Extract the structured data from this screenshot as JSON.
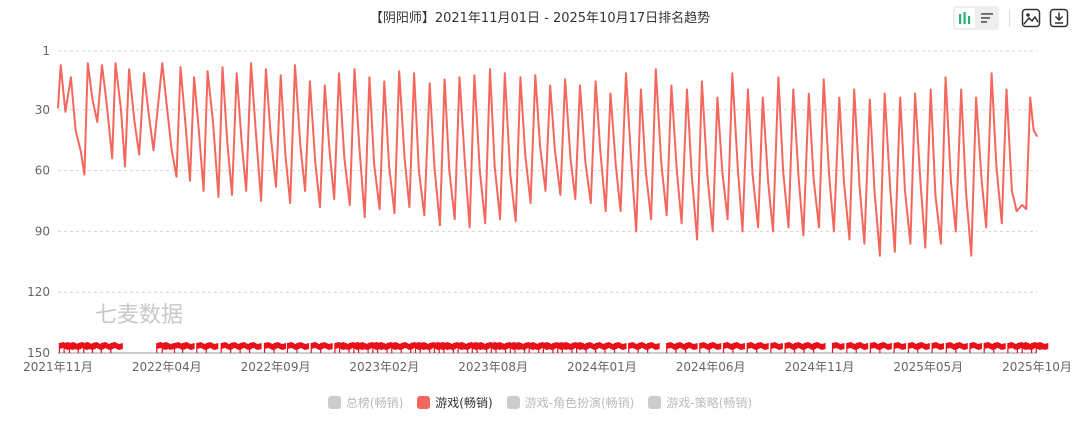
{
  "title": "【阴阳师】2021年11月01日 - 2025年10月17日排名趋势",
  "watermark": "七麦数据",
  "colors": {
    "line": "#f4675d",
    "flag": "#e8101a",
    "grid": "#d4d4d4",
    "inactive": "#cccccc"
  },
  "toolbar": {
    "icons": [
      "bar-chart-icon",
      "list-icon",
      "image-save-icon",
      "download-icon"
    ]
  },
  "legend": [
    {
      "label": "总榜(畅销)",
      "active": false
    },
    {
      "label": "游戏(畅销)",
      "active": true
    },
    {
      "label": "游戏-角色扮演(畅销)",
      "active": false
    },
    {
      "label": "游戏-策略(畅销)",
      "active": false
    }
  ],
  "chart_data": {
    "type": "line",
    "title": "【阴阳师】2021年11月01日 - 2025年10月17日排名趋势",
    "x_range": [
      "2021-11-01",
      "2025-10-17"
    ],
    "x_tick_labels": [
      "2021年11月",
      "2022年04月",
      "2022年09月",
      "2023年02月",
      "2023年08月",
      "2024年01月",
      "2024年06月",
      "2024年11月",
      "2025年05月",
      "2025年10月"
    ],
    "y_tick_labels": [
      "1",
      "30",
      "60",
      "90",
      "120",
      "150"
    ],
    "y_ticks": [
      1,
      30,
      60,
      90,
      120,
      150
    ],
    "ylim": [
      1,
      150
    ],
    "y_inverted": true,
    "grid": "horizontal dashed",
    "legend_position": "bottom",
    "series": [
      {
        "name": "游戏(畅销)",
        "active": true,
        "points": [
          [
            "2021-11-01",
            29
          ],
          [
            "2021-11-05",
            8
          ],
          [
            "2021-11-12",
            31
          ],
          [
            "2021-11-20",
            14
          ],
          [
            "2021-11-27",
            40
          ],
          [
            "2021-12-05",
            51
          ],
          [
            "2021-12-10",
            62
          ],
          [
            "2021-12-15",
            7
          ],
          [
            "2021-12-22",
            25
          ],
          [
            "2021-12-29",
            36
          ],
          [
            "2022-01-05",
            8
          ],
          [
            "2022-01-12",
            27
          ],
          [
            "2022-01-20",
            54
          ],
          [
            "2022-01-25",
            7
          ],
          [
            "2022-02-02",
            30
          ],
          [
            "2022-02-08",
            58
          ],
          [
            "2022-02-14",
            10
          ],
          [
            "2022-02-22",
            36
          ],
          [
            "2022-03-01",
            52
          ],
          [
            "2022-03-08",
            12
          ],
          [
            "2022-03-15",
            32
          ],
          [
            "2022-03-22",
            50
          ],
          [
            "2022-03-29",
            27
          ],
          [
            "2022-04-04",
            7
          ],
          [
            "2022-04-11",
            29
          ],
          [
            "2022-04-18",
            50
          ],
          [
            "2022-04-25",
            63
          ],
          [
            "2022-05-01",
            9
          ],
          [
            "2022-05-08",
            36
          ],
          [
            "2022-05-15",
            65
          ],
          [
            "2022-05-21",
            14
          ],
          [
            "2022-05-28",
            40
          ],
          [
            "2022-06-04",
            70
          ],
          [
            "2022-06-10",
            11
          ],
          [
            "2022-06-18",
            36
          ],
          [
            "2022-06-26",
            73
          ],
          [
            "2022-07-02",
            9
          ],
          [
            "2022-07-09",
            46
          ],
          [
            "2022-07-16",
            72
          ],
          [
            "2022-07-23",
            12
          ],
          [
            "2022-07-30",
            45
          ],
          [
            "2022-08-06",
            70
          ],
          [
            "2022-08-13",
            7
          ],
          [
            "2022-08-20",
            40
          ],
          [
            "2022-08-28",
            75
          ],
          [
            "2022-09-04",
            10
          ],
          [
            "2022-09-11",
            42
          ],
          [
            "2022-09-19",
            68
          ],
          [
            "2022-09-26",
            13
          ],
          [
            "2022-10-03",
            53
          ],
          [
            "2022-10-10",
            76
          ],
          [
            "2022-10-17",
            8
          ],
          [
            "2022-10-25",
            48
          ],
          [
            "2022-11-01",
            70
          ],
          [
            "2022-11-08",
            16
          ],
          [
            "2022-11-16",
            56
          ],
          [
            "2022-11-23",
            78
          ],
          [
            "2022-11-30",
            18
          ],
          [
            "2022-12-07",
            50
          ],
          [
            "2022-12-14",
            74
          ],
          [
            "2022-12-21",
            12
          ],
          [
            "2022-12-29",
            54
          ],
          [
            "2023-01-06",
            77
          ],
          [
            "2023-01-13",
            10
          ],
          [
            "2023-01-20",
            48
          ],
          [
            "2023-01-28",
            83
          ],
          [
            "2023-02-04",
            14
          ],
          [
            "2023-02-11",
            57
          ],
          [
            "2023-02-19",
            79
          ],
          [
            "2023-02-26",
            16
          ],
          [
            "2023-03-05",
            58
          ],
          [
            "2023-03-13",
            81
          ],
          [
            "2023-03-20",
            11
          ],
          [
            "2023-03-28",
            54
          ],
          [
            "2023-04-04",
            78
          ],
          [
            "2023-04-11",
            12
          ],
          [
            "2023-04-18",
            60
          ],
          [
            "2023-04-26",
            82
          ],
          [
            "2023-05-04",
            17
          ],
          [
            "2023-05-11",
            58
          ],
          [
            "2023-05-19",
            87
          ],
          [
            "2023-05-26",
            15
          ],
          [
            "2023-06-02",
            60
          ],
          [
            "2023-06-10",
            84
          ],
          [
            "2023-06-17",
            14
          ],
          [
            "2023-06-25",
            56
          ],
          [
            "2023-07-02",
            88
          ],
          [
            "2023-07-09",
            13
          ],
          [
            "2023-07-17",
            60
          ],
          [
            "2023-07-25",
            86
          ],
          [
            "2023-08-01",
            10
          ],
          [
            "2023-08-08",
            58
          ],
          [
            "2023-08-16",
            84
          ],
          [
            "2023-08-23",
            12
          ],
          [
            "2023-08-31",
            62
          ],
          [
            "2023-09-08",
            85
          ],
          [
            "2023-09-15",
            14
          ],
          [
            "2023-09-22",
            52
          ],
          [
            "2023-09-30",
            76
          ],
          [
            "2023-10-07",
            13
          ],
          [
            "2023-10-14",
            48
          ],
          [
            "2023-10-22",
            70
          ],
          [
            "2023-10-29",
            18
          ],
          [
            "2023-11-05",
            50
          ],
          [
            "2023-11-13",
            72
          ],
          [
            "2023-11-20",
            15
          ],
          [
            "2023-11-28",
            54
          ],
          [
            "2023-12-05",
            74
          ],
          [
            "2023-12-12",
            18
          ],
          [
            "2023-12-20",
            56
          ],
          [
            "2023-12-28",
            76
          ],
          [
            "2024-01-04",
            16
          ],
          [
            "2024-01-11",
            50
          ],
          [
            "2024-01-19",
            80
          ],
          [
            "2024-01-26",
            22
          ],
          [
            "2024-02-03",
            58
          ],
          [
            "2024-02-10",
            80
          ],
          [
            "2024-02-18",
            12
          ],
          [
            "2024-02-25",
            52
          ],
          [
            "2024-03-04",
            90
          ],
          [
            "2024-03-11",
            20
          ],
          [
            "2024-03-18",
            60
          ],
          [
            "2024-03-26",
            84
          ],
          [
            "2024-04-02",
            10
          ],
          [
            "2024-04-10",
            56
          ],
          [
            "2024-04-18",
            82
          ],
          [
            "2024-04-25",
            18
          ],
          [
            "2024-05-03",
            60
          ],
          [
            "2024-05-10",
            86
          ],
          [
            "2024-05-18",
            20
          ],
          [
            "2024-05-25",
            62
          ],
          [
            "2024-06-02",
            94
          ],
          [
            "2024-06-09",
            16
          ],
          [
            "2024-06-17",
            62
          ],
          [
            "2024-06-25",
            90
          ],
          [
            "2024-07-02",
            24
          ],
          [
            "2024-07-09",
            60
          ],
          [
            "2024-07-17",
            84
          ],
          [
            "2024-07-24",
            12
          ],
          [
            "2024-08-01",
            58
          ],
          [
            "2024-08-08",
            90
          ],
          [
            "2024-08-16",
            20
          ],
          [
            "2024-08-23",
            62
          ],
          [
            "2024-08-31",
            88
          ],
          [
            "2024-09-07",
            24
          ],
          [
            "2024-09-15",
            66
          ],
          [
            "2024-09-22",
            90
          ],
          [
            "2024-09-30",
            14
          ],
          [
            "2024-10-07",
            60
          ],
          [
            "2024-10-15",
            88
          ],
          [
            "2024-10-22",
            20
          ],
          [
            "2024-10-30",
            64
          ],
          [
            "2024-11-06",
            92
          ],
          [
            "2024-11-14",
            22
          ],
          [
            "2024-11-21",
            64
          ],
          [
            "2024-11-29",
            88
          ],
          [
            "2024-12-06",
            15
          ],
          [
            "2024-12-14",
            62
          ],
          [
            "2024-12-21",
            90
          ],
          [
            "2024-12-29",
            24
          ],
          [
            "2025-01-05",
            66
          ],
          [
            "2025-01-13",
            94
          ],
          [
            "2025-01-20",
            20
          ],
          [
            "2025-01-28",
            68
          ],
          [
            "2025-02-04",
            96
          ],
          [
            "2025-02-12",
            25
          ],
          [
            "2025-02-19",
            70
          ],
          [
            "2025-02-27",
            102
          ],
          [
            "2025-03-06",
            22
          ],
          [
            "2025-03-14",
            68
          ],
          [
            "2025-03-21",
            100
          ],
          [
            "2025-03-29",
            24
          ],
          [
            "2025-04-05",
            70
          ],
          [
            "2025-04-13",
            96
          ],
          [
            "2025-04-20",
            22
          ],
          [
            "2025-04-28",
            66
          ],
          [
            "2025-05-05",
            98
          ],
          [
            "2025-05-13",
            20
          ],
          [
            "2025-05-20",
            72
          ],
          [
            "2025-05-28",
            96
          ],
          [
            "2025-06-04",
            14
          ],
          [
            "2025-06-12",
            66
          ],
          [
            "2025-06-19",
            90
          ],
          [
            "2025-06-27",
            20
          ],
          [
            "2025-07-04",
            70
          ],
          [
            "2025-07-12",
            102
          ],
          [
            "2025-07-19",
            24
          ],
          [
            "2025-07-27",
            64
          ],
          [
            "2025-08-03",
            88
          ],
          [
            "2025-08-11",
            12
          ],
          [
            "2025-08-18",
            58
          ],
          [
            "2025-08-26",
            86
          ],
          [
            "2025-09-02",
            20
          ],
          [
            "2025-09-10",
            70
          ],
          [
            "2025-09-17",
            80
          ],
          [
            "2025-09-25",
            77
          ],
          [
            "2025-10-01",
            79
          ],
          [
            "2025-10-07",
            24
          ],
          [
            "2025-10-12",
            40
          ],
          [
            "2025-10-17",
            43
          ]
        ]
      },
      {
        "name": "总榜(畅销)",
        "active": false
      },
      {
        "name": "游戏-角色扮演(畅销)",
        "active": false
      },
      {
        "name": "游戏-策略(畅销)",
        "active": false
      }
    ],
    "event_markers": {
      "shape": "flag",
      "dates": [
        "2021-11-03",
        "2021-11-10",
        "2021-11-18",
        "2021-12-01",
        "2021-12-09",
        "2021-12-22",
        "2022-01-04",
        "2022-01-18",
        "2022-03-27",
        "2022-04-04",
        "2022-04-22",
        "2022-05-04",
        "2022-05-25",
        "2022-06-08",
        "2022-06-30",
        "2022-07-14",
        "2022-07-28",
        "2022-08-11",
        "2022-09-02",
        "2022-09-16",
        "2022-10-06",
        "2022-10-20",
        "2022-11-10",
        "2022-11-24",
        "2022-12-15",
        "2022-12-22",
        "2023-01-05",
        "2023-01-12",
        "2023-01-19",
        "2023-02-02",
        "2023-02-09",
        "2023-02-16",
        "2023-03-02",
        "2023-03-09",
        "2023-03-23",
        "2023-04-06",
        "2023-04-13",
        "2023-04-20",
        "2023-05-04",
        "2023-05-11",
        "2023-05-18",
        "2023-05-25",
        "2023-06-08",
        "2023-06-15",
        "2023-06-29",
        "2023-07-06",
        "2023-07-13",
        "2023-07-27",
        "2023-08-03",
        "2023-08-10",
        "2023-08-24",
        "2023-08-31",
        "2023-09-07",
        "2023-09-21",
        "2023-09-28",
        "2023-10-12",
        "2023-10-19",
        "2023-11-02",
        "2023-11-09",
        "2023-11-16",
        "2023-11-30",
        "2023-12-07",
        "2023-12-21",
        "2024-01-04",
        "2024-01-18",
        "2024-02-01",
        "2024-02-22",
        "2024-03-07",
        "2024-03-21",
        "2024-04-18",
        "2024-05-02",
        "2024-05-16",
        "2024-06-06",
        "2024-06-20",
        "2024-07-11",
        "2024-07-25",
        "2024-08-15",
        "2024-08-29",
        "2024-09-19",
        "2024-10-10",
        "2024-10-24",
        "2024-11-07",
        "2024-11-21",
        "2024-12-19",
        "2025-01-09",
        "2025-01-23",
        "2025-02-13",
        "2025-02-27",
        "2025-03-20",
        "2025-04-10",
        "2025-04-24",
        "2025-05-15",
        "2025-06-05",
        "2025-06-19",
        "2025-07-10",
        "2025-07-31",
        "2025-08-14",
        "2025-09-04",
        "2025-09-18",
        "2025-09-25",
        "2025-10-09",
        "2025-10-16"
      ]
    }
  }
}
